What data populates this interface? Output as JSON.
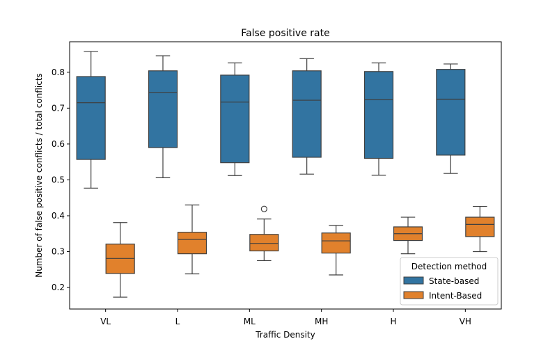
{
  "chart_data": {
    "type": "boxplot",
    "title": "False positive rate",
    "xlabel": "Traffic Density",
    "ylabel": "Number of false positive conflicts / total conflicts",
    "categories": [
      "VL",
      "L",
      "ML",
      "MH",
      "H",
      "VH"
    ],
    "ylim": [
      0.14,
      0.885
    ],
    "yticks": [
      "0.2",
      "0.3",
      "0.4",
      "0.5",
      "0.6",
      "0.7",
      "0.8"
    ],
    "grid": false,
    "legend": {
      "title": "Detection method",
      "placement": "lower-right"
    },
    "series": [
      {
        "name": "State-based",
        "color": "#3274a1",
        "boxes": [
          {
            "whislo": 0.477,
            "q1": 0.557,
            "med": 0.715,
            "q3": 0.788,
            "whishi": 0.858,
            "fliers": []
          },
          {
            "whislo": 0.506,
            "q1": 0.59,
            "med": 0.744,
            "q3": 0.804,
            "whishi": 0.846,
            "fliers": []
          },
          {
            "whislo": 0.512,
            "q1": 0.548,
            "med": 0.717,
            "q3": 0.792,
            "whishi": 0.826,
            "fliers": []
          },
          {
            "whislo": 0.516,
            "q1": 0.563,
            "med": 0.722,
            "q3": 0.804,
            "whishi": 0.838,
            "fliers": []
          },
          {
            "whislo": 0.513,
            "q1": 0.56,
            "med": 0.724,
            "q3": 0.802,
            "whishi": 0.826,
            "fliers": []
          },
          {
            "whislo": 0.518,
            "q1": 0.569,
            "med": 0.725,
            "q3": 0.808,
            "whishi": 0.823,
            "fliers": []
          }
        ]
      },
      {
        "name": "Intent-Based",
        "color": "#e1812c",
        "boxes": [
          {
            "whislo": 0.173,
            "q1": 0.239,
            "med": 0.281,
            "q3": 0.321,
            "whishi": 0.381,
            "fliers": []
          },
          {
            "whislo": 0.238,
            "q1": 0.294,
            "med": 0.334,
            "q3": 0.354,
            "whishi": 0.43,
            "fliers": []
          },
          {
            "whislo": 0.275,
            "q1": 0.302,
            "med": 0.323,
            "q3": 0.348,
            "whishi": 0.391,
            "fliers": [
              0.419
            ]
          },
          {
            "whislo": 0.235,
            "q1": 0.296,
            "med": 0.33,
            "q3": 0.352,
            "whishi": 0.373,
            "fliers": []
          },
          {
            "whislo": 0.294,
            "q1": 0.331,
            "med": 0.35,
            "q3": 0.369,
            "whishi": 0.396,
            "fliers": []
          },
          {
            "whislo": 0.3,
            "q1": 0.342,
            "med": 0.376,
            "q3": 0.396,
            "whishi": 0.426,
            "fliers": []
          }
        ]
      }
    ]
  }
}
